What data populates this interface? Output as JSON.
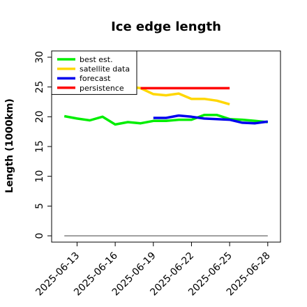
{
  "chart_data": {
    "type": "line",
    "title": "Ice edge length",
    "xlabel": "",
    "ylabel": "Length (1000km)",
    "ylim": [
      0,
      30
    ],
    "xlim": [
      "2025-06-11",
      "2025-06-29"
    ],
    "yticks": [
      "0",
      "5",
      "10",
      "15",
      "20",
      "25",
      "30"
    ],
    "xticks": [
      {
        "date": "2025-06-13",
        "label": "2025-06-13",
        "color": "#000000"
      },
      {
        "date": "2025-06-16",
        "label": "2025-06-16",
        "color": "#000000"
      },
      {
        "date": "2025-06-19",
        "label": "2025-06-19",
        "color": "#2e8b2e"
      },
      {
        "date": "2025-06-22",
        "label": "2025-06-22",
        "color": "#000000"
      },
      {
        "date": "2025-06-25",
        "label": "2025-06-25",
        "color": "#000000"
      },
      {
        "date": "2025-06-28",
        "label": "2025-06-28",
        "color": "#000000"
      }
    ],
    "legend_position": "top-left",
    "grid": false,
    "series": [
      {
        "name": "best est.",
        "color": "#00ee00",
        "points": [
          {
            "x": "2025-06-12",
            "y": 20.1
          },
          {
            "x": "2025-06-13",
            "y": 19.7
          },
          {
            "x": "2025-06-14",
            "y": 19.4
          },
          {
            "x": "2025-06-15",
            "y": 20.0
          },
          {
            "x": "2025-06-16",
            "y": 18.7
          },
          {
            "x": "2025-06-17",
            "y": 19.1
          },
          {
            "x": "2025-06-18",
            "y": 18.9
          },
          {
            "x": "2025-06-19",
            "y": 19.3
          },
          {
            "x": "2025-06-20",
            "y": 19.3
          },
          {
            "x": "2025-06-21",
            "y": 19.5
          },
          {
            "x": "2025-06-22",
            "y": 19.5
          },
          {
            "x": "2025-06-23",
            "y": 20.3
          },
          {
            "x": "2025-06-24",
            "y": 20.3
          },
          {
            "x": "2025-06-25",
            "y": 19.6
          },
          {
            "x": "2025-06-26",
            "y": 19.5
          },
          {
            "x": "2025-06-27",
            "y": 19.3
          },
          {
            "x": "2025-06-28",
            "y": 19.1
          }
        ]
      },
      {
        "name": "satellite data",
        "color": "#ffd700",
        "points": [
          {
            "x": "2025-06-17",
            "y": 25.1
          },
          {
            "x": "2025-06-18",
            "y": 24.8
          },
          {
            "x": "2025-06-19",
            "y": 23.8
          },
          {
            "x": "2025-06-20",
            "y": 23.6
          },
          {
            "x": "2025-06-21",
            "y": 23.9
          },
          {
            "x": "2025-06-22",
            "y": 23.0
          },
          {
            "x": "2025-06-23",
            "y": 23.0
          },
          {
            "x": "2025-06-24",
            "y": 22.7
          },
          {
            "x": "2025-06-25",
            "y": 22.1
          }
        ]
      },
      {
        "name": "forecast",
        "color": "#0000ee",
        "points": [
          {
            "x": "2025-06-19",
            "y": 19.8
          },
          {
            "x": "2025-06-20",
            "y": 19.8
          },
          {
            "x": "2025-06-21",
            "y": 20.2
          },
          {
            "x": "2025-06-22",
            "y": 20.0
          },
          {
            "x": "2025-06-23",
            "y": 19.7
          },
          {
            "x": "2025-06-24",
            "y": 19.6
          },
          {
            "x": "2025-06-25",
            "y": 19.5
          },
          {
            "x": "2025-06-26",
            "y": 19.0
          },
          {
            "x": "2025-06-27",
            "y": 18.9
          },
          {
            "x": "2025-06-28",
            "y": 19.2
          }
        ]
      },
      {
        "name": "persistence",
        "color": "#ff0000",
        "points": [
          {
            "x": "2025-06-18",
            "y": 24.8
          },
          {
            "x": "2025-06-25",
            "y": 24.8
          }
        ]
      }
    ],
    "reference_line": {
      "color": "#808080",
      "points": [
        {
          "x": "2025-06-12",
          "y": 0
        },
        {
          "x": "2025-06-28",
          "y": 0
        }
      ]
    }
  }
}
